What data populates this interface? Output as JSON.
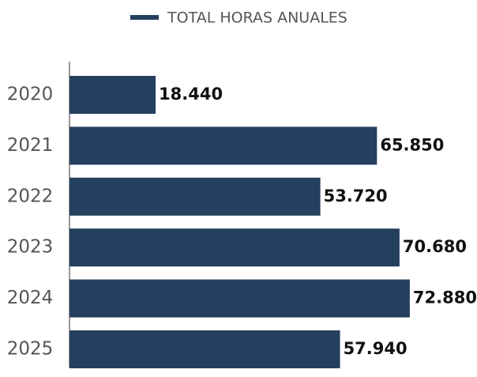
{
  "chart_data": {
    "type": "bar",
    "orientation": "horizontal",
    "categories": [
      "2020",
      "2021",
      "2022",
      "2023",
      "2024",
      "2025"
    ],
    "series": [
      {
        "name": "TOTAL HORAS ANUALES",
        "color": "#253f5f",
        "values": [
          18440,
          65850,
          53720,
          70680,
          72880,
          57940
        ],
        "value_labels": [
          "18.440",
          "65.850",
          "53.720",
          "70.680",
          "72.880",
          "57.940"
        ]
      }
    ],
    "xlim": [
      0,
      80000
    ],
    "legend": "top"
  }
}
